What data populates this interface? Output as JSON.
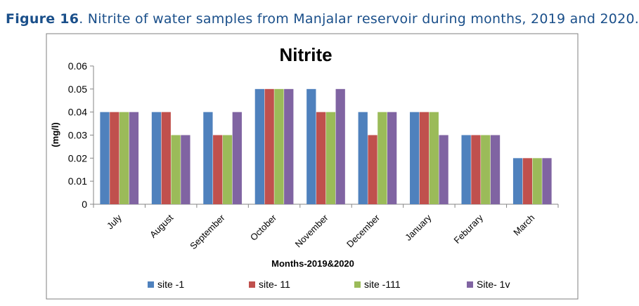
{
  "caption": {
    "label": "Figure 16",
    "text": ". Nitrite of water samples from Manjalar reservoir during months, 2019 and 2020."
  },
  "chart_data": {
    "type": "bar",
    "title": "Nitrite",
    "xlabel": "Months-2019&2020",
    "ylabel": "(mg/l)",
    "ylim": [
      0,
      0.06
    ],
    "yticks": [
      "0",
      "0.01",
      "0.02",
      "0.03",
      "0.04",
      "0.05",
      "0.06"
    ],
    "grid": false,
    "legend_position": "bottom",
    "categories": [
      "July",
      "August",
      "September",
      "October",
      "November",
      "December",
      "January",
      "Feburary",
      "March"
    ],
    "series": [
      {
        "name": "site -1",
        "color": "#4f81bd",
        "values": [
          0.04,
          0.04,
          0.04,
          0.05,
          0.05,
          0.04,
          0.04,
          0.03,
          0.02
        ]
      },
      {
        "name": "site- 11",
        "color": "#c0504d",
        "values": [
          0.04,
          0.04,
          0.03,
          0.05,
          0.04,
          0.03,
          0.04,
          0.03,
          0.02
        ]
      },
      {
        "name": "site -111",
        "color": "#9bbb59",
        "values": [
          0.04,
          0.03,
          0.03,
          0.05,
          0.04,
          0.04,
          0.04,
          0.03,
          0.02
        ]
      },
      {
        "name": "Site- 1v",
        "color": "#8064a2",
        "values": [
          0.04,
          0.03,
          0.04,
          0.05,
          0.05,
          0.04,
          0.03,
          0.03,
          0.02
        ]
      }
    ]
  }
}
